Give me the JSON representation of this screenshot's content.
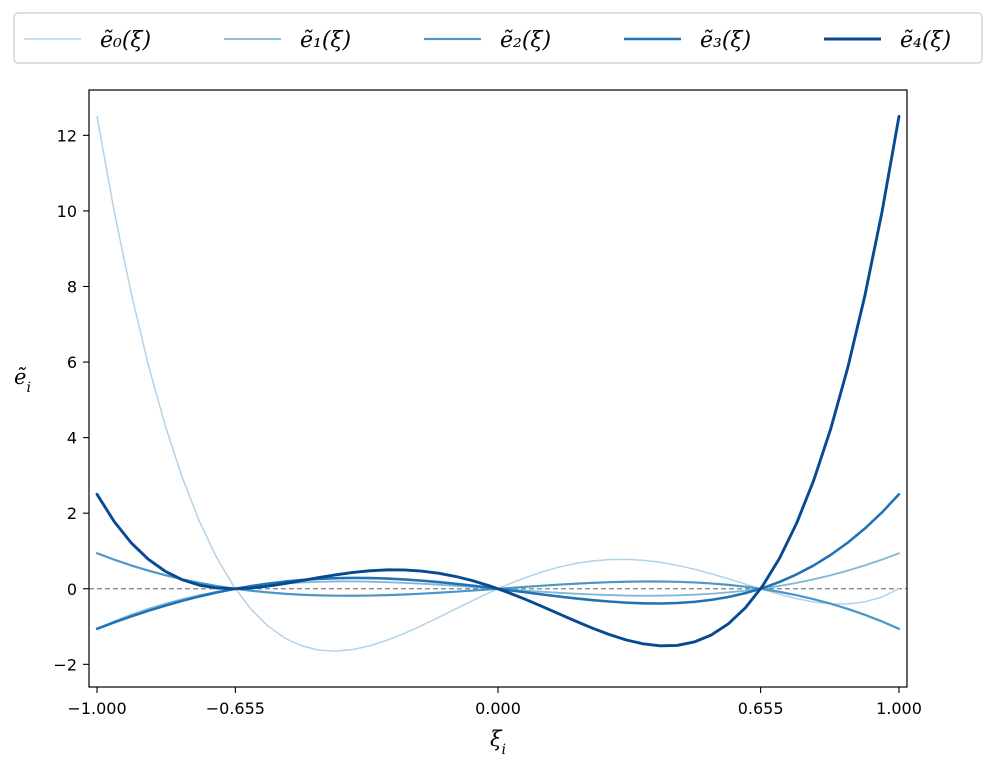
{
  "chart_data": {
    "type": "line",
    "xlabel": "ξ_i",
    "ylabel": "ẽ_i",
    "xlim": [
      -1.02,
      1.02
    ],
    "ylim": [
      -2.6,
      13.2
    ],
    "xticks": [
      -1.0,
      -0.655,
      0.0,
      0.655,
      1.0
    ],
    "xtick_labels": [
      "−1.000",
      "−0.655",
      "0.000",
      "0.655",
      "1.000"
    ],
    "yticks": [
      -2,
      0,
      2,
      4,
      6,
      8,
      10,
      12
    ],
    "ytick_labels": [
      "−2",
      "0",
      "2",
      "4",
      "6",
      "8",
      "10",
      "12"
    ],
    "grid": false,
    "reference_line": {
      "y": 0,
      "style": "dashed",
      "color": "#808080"
    },
    "legend_placement": "top, outside, 5 columns",
    "nodes": [
      -1.0,
      -0.655,
      0.0,
      0.655,
      1.0
    ],
    "series": [
      {
        "name": "ẽ₀(ξ)",
        "color": "#b3d3e8",
        "node_values": [
          12.5,
          0,
          0,
          0,
          0
        ]
      },
      {
        "name": "ẽ₁(ξ)",
        "color": "#7fb8da",
        "node_values": [
          -1.06,
          0,
          0,
          0,
          0.94
        ]
      },
      {
        "name": "ẽ₂(ξ)",
        "color": "#4a98c9",
        "node_values": [
          0.94,
          0,
          0,
          0,
          -1.06
        ]
      },
      {
        "name": "ẽ₃(ξ)",
        "color": "#2171b5",
        "node_values": [
          -1.06,
          0,
          0,
          0,
          2.5
        ]
      },
      {
        "name": "ẽ₄(ξ)",
        "color": "#084a92",
        "node_values": [
          2.5,
          0,
          0,
          0,
          12.5
        ]
      }
    ]
  }
}
